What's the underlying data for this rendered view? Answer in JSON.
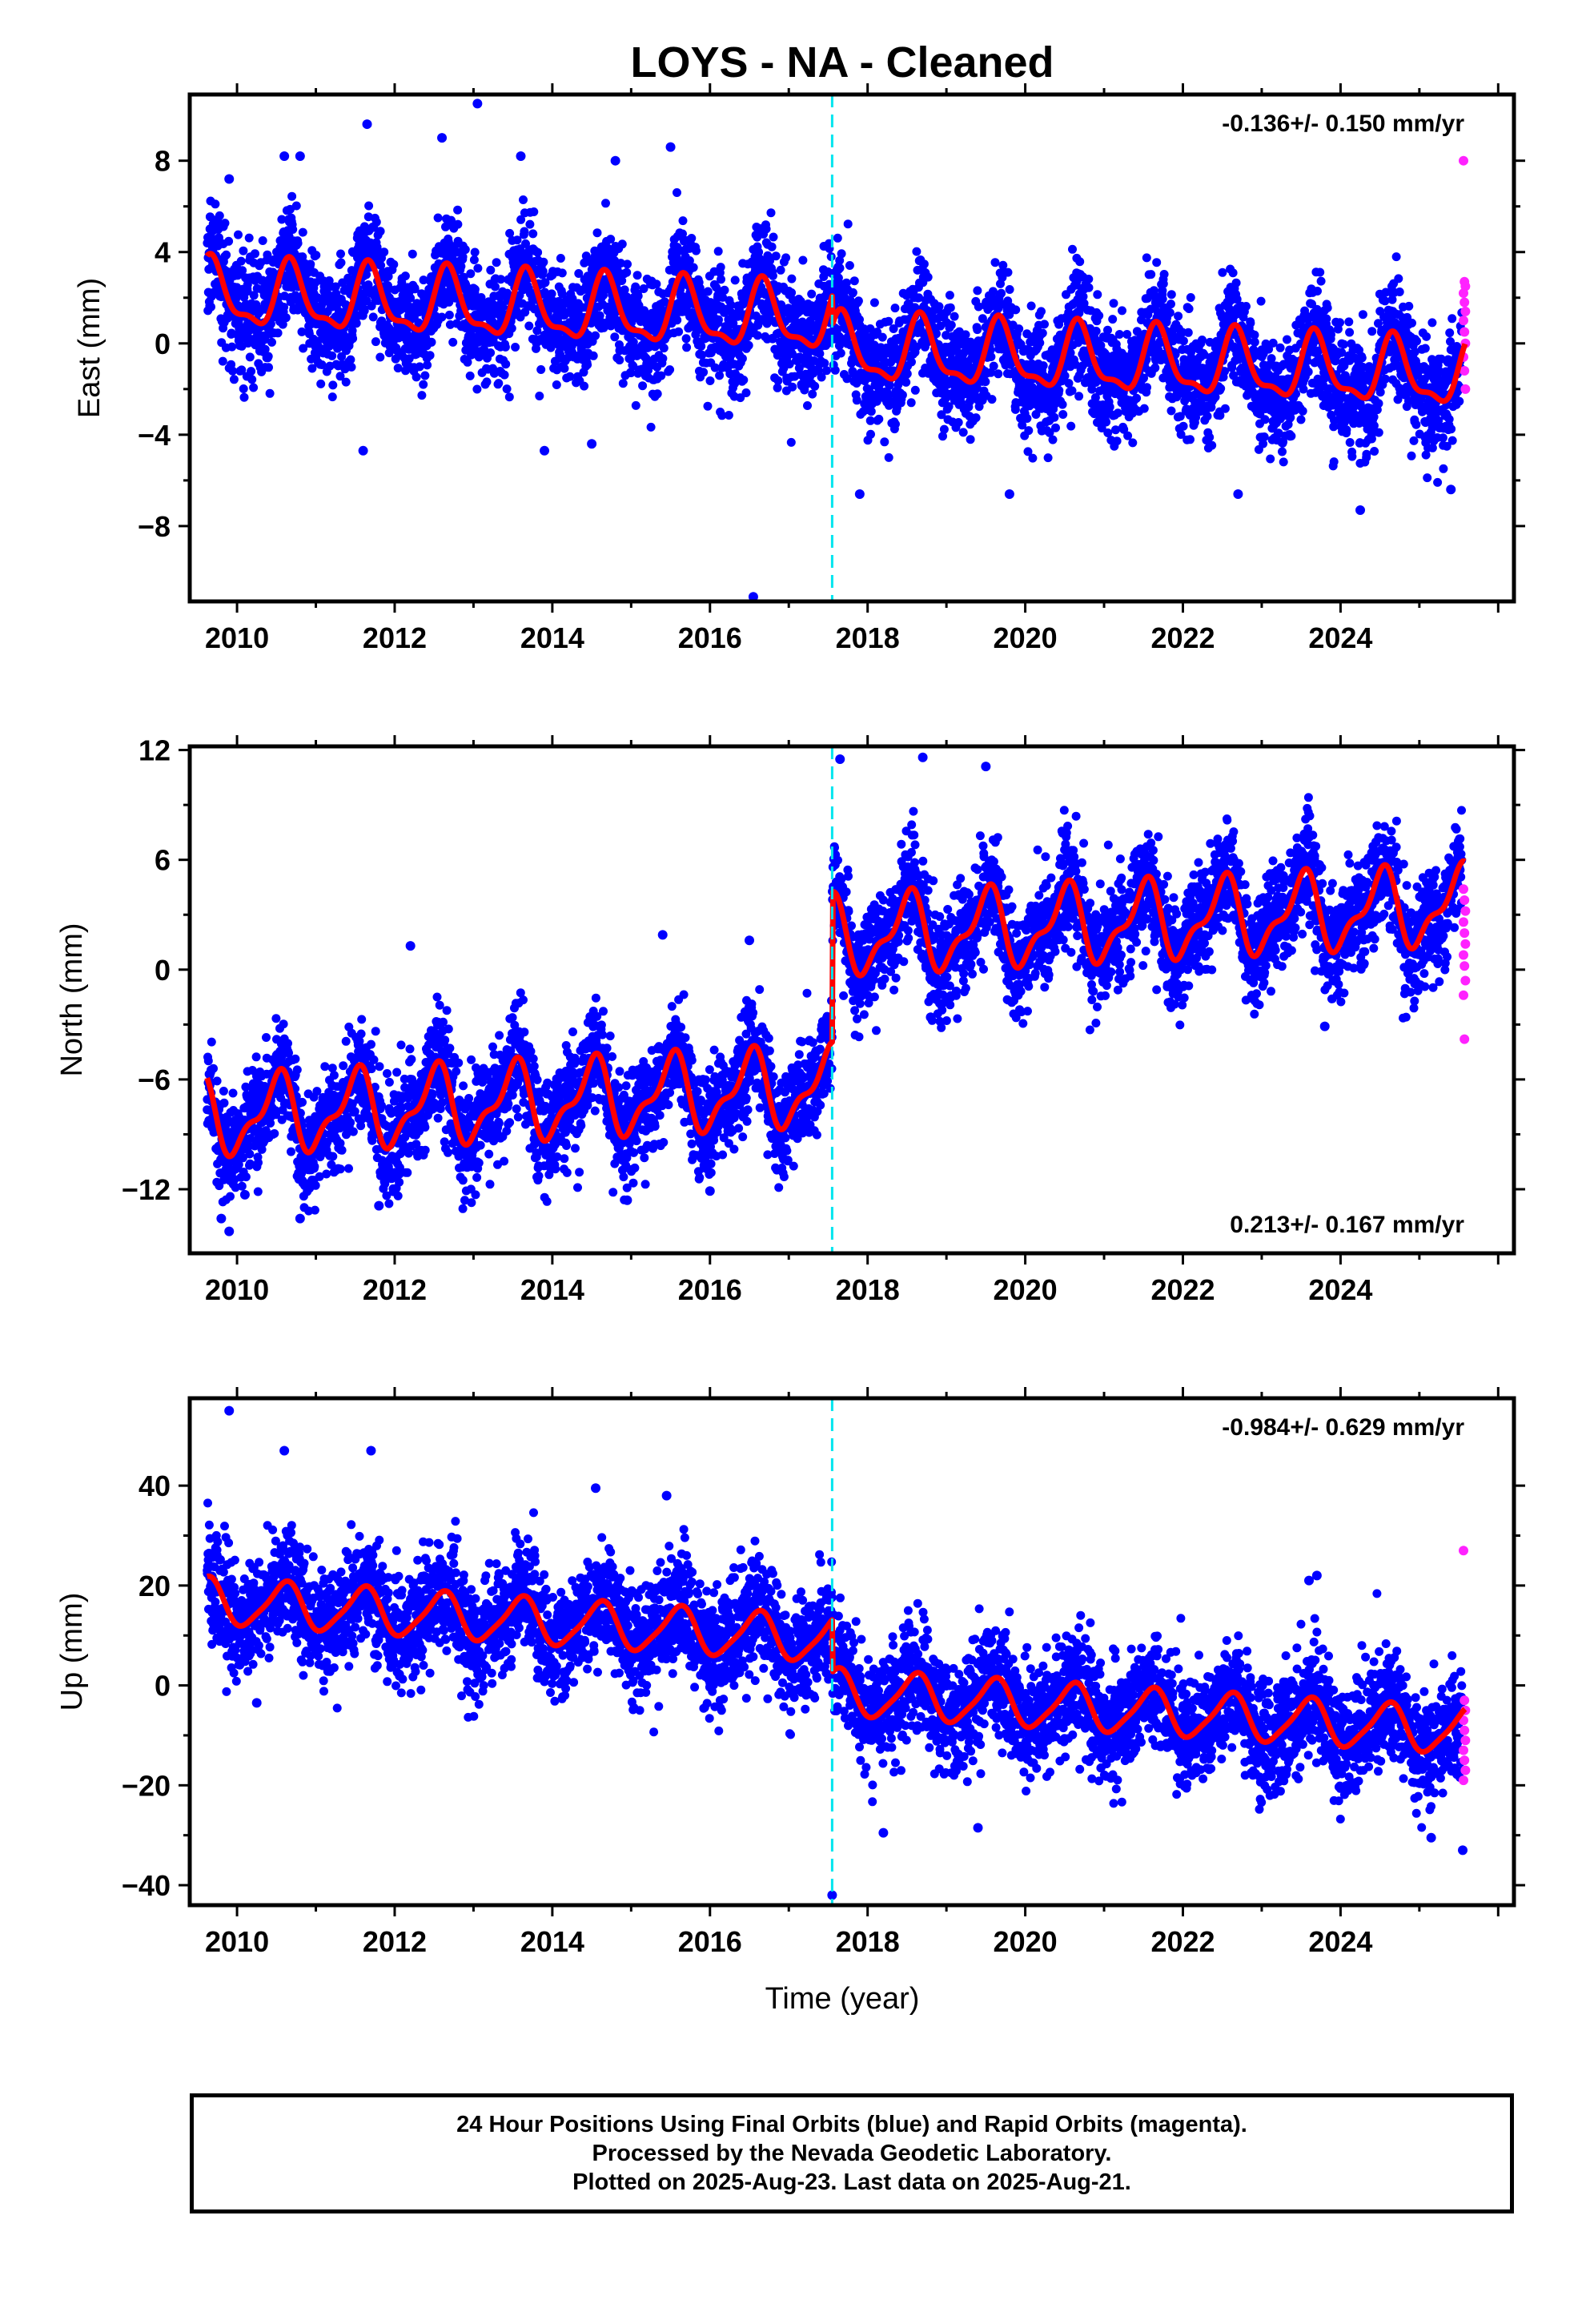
{
  "title": "LOYS  - NA - Cleaned",
  "xlabel": "Time (year)",
  "footer": {
    "line1": "24 Hour Positions Using Final Orbits (blue) and Rapid Orbits (magenta).",
    "line2": "Processed by the Nevada Geodetic Laboratory.",
    "line3": "Plotted on 2025-Aug-23. Last data on 2025-Aug-21."
  },
  "colors": {
    "final": "#0000ff",
    "rapid": "#ff22ff",
    "model": "#ff0000",
    "break": "#00e5ee",
    "frame": "#000000"
  },
  "chart_data": [
    {
      "type": "scatter",
      "ylabel": "East (mm)",
      "rate": "-0.136+/- 0.150 mm/yr",
      "rate_position": "top-right",
      "xlim": [
        2009.4,
        2026.2
      ],
      "ylim": [
        -11.3,
        10.9
      ],
      "xticks": [
        2010,
        2012,
        2014,
        2016,
        2018,
        2020,
        2022,
        2024
      ],
      "yticks": [
        -8,
        -4,
        0,
        4,
        8
      ],
      "break_year": 2017.55,
      "model": {
        "offset": 2.05,
        "trend": -0.14,
        "amp_annual": 1.35,
        "phase_annual": 0.68,
        "amp_semi": 0.5,
        "phase_semi": 0.15,
        "jump": -1.3,
        "noise": 1.25
      },
      "rapid_values": [
        8.0,
        2.7,
        2.5,
        2.2,
        1.8,
        1.4,
        1.0,
        0.5,
        0.0,
        -0.6,
        -1.2,
        -2.0
      ],
      "outliers": [
        [
          2009.9,
          7.2
        ],
        [
          2010.6,
          8.2
        ],
        [
          2010.8,
          8.2
        ],
        [
          2011.65,
          9.6
        ],
        [
          2012.6,
          9.0
        ],
        [
          2013.05,
          10.5
        ],
        [
          2013.6,
          8.2
        ],
        [
          2014.8,
          8.0
        ],
        [
          2015.5,
          8.6
        ],
        [
          2011.6,
          -4.7
        ],
        [
          2013.9,
          -4.7
        ],
        [
          2014.5,
          -4.4
        ],
        [
          2017.9,
          -6.6
        ],
        [
          2019.8,
          -6.6
        ],
        [
          2022.7,
          -6.6
        ],
        [
          2024.25,
          -7.3
        ],
        [
          2016.55,
          -11.1
        ],
        [
          2025.4,
          -6.4
        ]
      ]
    },
    {
      "type": "scatter",
      "ylabel": "North (mm)",
      "rate": "0.213+/- 0.167 mm/yr",
      "rate_position": "bottom-right",
      "xlim": [
        2009.4,
        2026.2
      ],
      "ylim": [
        -15.5,
        12.2
      ],
      "xticks": [
        2010,
        2012,
        2014,
        2016,
        2018,
        2020,
        2022,
        2024
      ],
      "yticks": [
        -12,
        -6,
        0,
        6,
        12
      ],
      "break_year": 2017.55,
      "model": {
        "offset": -8.0,
        "trend": 0.21,
        "amp_annual": 1.9,
        "phase_annual": 0.5,
        "amp_semi": 0.8,
        "phase_semi": 0.1,
        "jump": 8.2,
        "noise": 1.45
      },
      "rapid_values": [
        4.4,
        3.8,
        3.2,
        2.6,
        2.0,
        1.4,
        0.8,
        0.2,
        -0.6,
        -1.4,
        -3.8
      ],
      "outliers": [
        [
          2017.65,
          11.5
        ],
        [
          2018.7,
          11.6
        ],
        [
          2019.5,
          11.1
        ],
        [
          2012.2,
          1.3
        ],
        [
          2015.4,
          1.9
        ],
        [
          2016.5,
          1.6
        ],
        [
          2009.9,
          -14.3
        ],
        [
          2009.8,
          -13.6
        ],
        [
          2010.8,
          -13.6
        ],
        [
          2011.8,
          -12.9
        ],
        [
          2014.95,
          -12.6
        ],
        [
          2010.1,
          -12.3
        ],
        [
          2016.0,
          -12.1
        ],
        [
          2023.8,
          -3.1
        ],
        [
          2018.8,
          -2.6
        ]
      ]
    },
    {
      "type": "scatter",
      "ylabel": "Up (mm)",
      "rate": "-0.984+/- 0.629 mm/yr",
      "rate_position": "top-right",
      "xlim": [
        2009.4,
        2026.2
      ],
      "ylim": [
        -44,
        57.5
      ],
      "xticks": [
        2010,
        2012,
        2014,
        2016,
        2018,
        2020,
        2022,
        2024
      ],
      "yticks": [
        -40,
        -20,
        0,
        20,
        40
      ],
      "break_year": 2017.55,
      "model": {
        "offset": 16.5,
        "trend": -0.98,
        "amp_annual": 4.5,
        "phase_annual": 0.6,
        "amp_semi": 0.9,
        "phase_semi": 0.2,
        "jump": -10.5,
        "noise": 5.6
      },
      "rapid_values": [
        27.0,
        -3.0,
        -5.0,
        -7.0,
        -9.0,
        -11.0,
        -13.0,
        -15.0,
        -17.0,
        -19.0
      ],
      "outliers": [
        [
          2009.9,
          55.0
        ],
        [
          2010.6,
          47.0
        ],
        [
          2011.7,
          47.0
        ],
        [
          2014.55,
          39.5
        ],
        [
          2015.45,
          38.0
        ],
        [
          2017.55,
          -42.0
        ],
        [
          2023.7,
          22.0
        ],
        [
          2023.6,
          21.0
        ],
        [
          2025.15,
          -30.5
        ],
        [
          2025.55,
          -33.0
        ],
        [
          2019.4,
          -28.5
        ],
        [
          2018.2,
          -29.5
        ],
        [
          2010.25,
          -3.5
        ]
      ]
    }
  ]
}
